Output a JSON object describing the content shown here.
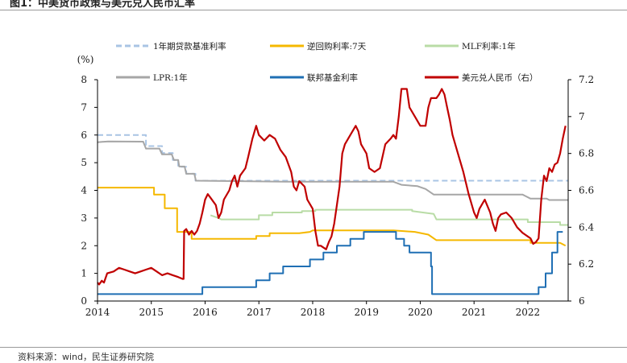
{
  "figure": {
    "title": "图1：中美货币政策与美元兑人民币汇率",
    "source": "资料来源：wind，民生证券研究院"
  },
  "colors": {
    "loan_rate": "#a9c4e4",
    "reverse_repo": "#f5b800",
    "mlf": "#b9dca6",
    "lpr": "#a6a6a6",
    "fed_funds": "#1f6fb4",
    "usdcny": "#c00000"
  },
  "chart_data": {
    "type": "line",
    "title": "",
    "xlabel": "",
    "ylabel_left": "(%)",
    "ylabel_right": "",
    "xlim": [
      2014,
      2022.75
    ],
    "ylim_left": [
      0,
      8
    ],
    "ylim_right": [
      6,
      7.2
    ],
    "x_ticks": [
      2014,
      2015,
      2016,
      2017,
      2018,
      2019,
      2020,
      2021,
      2022
    ],
    "y_left_ticks": [
      0,
      1,
      2,
      3,
      4,
      5,
      6,
      7,
      8
    ],
    "y_right_ticks": [
      "6",
      "6.2",
      "6.4",
      "6.6",
      "6.8",
      "7",
      "7.2"
    ],
    "grid": false,
    "legend_position": "top",
    "series": [
      {
        "name": "1年期贷款基准利率",
        "axis": "left",
        "style": "dashed",
        "color_key": "loan_rate",
        "points": [
          [
            2014.0,
            6.0
          ],
          [
            2014.9,
            6.0
          ],
          [
            2014.9,
            5.6
          ],
          [
            2015.2,
            5.6
          ],
          [
            2015.2,
            5.35
          ],
          [
            2015.4,
            5.35
          ],
          [
            2015.4,
            5.1
          ],
          [
            2015.5,
            5.1
          ],
          [
            2015.5,
            4.85
          ],
          [
            2015.65,
            4.85
          ],
          [
            2015.65,
            4.6
          ],
          [
            2015.82,
            4.6
          ],
          [
            2015.82,
            4.35
          ],
          [
            2022.75,
            4.35
          ]
        ]
      },
      {
        "name": "逆回购利率:7天",
        "axis": "left",
        "style": "solid",
        "color_key": "reverse_repo",
        "points": [
          [
            2014.0,
            4.1
          ],
          [
            2015.05,
            4.1
          ],
          [
            2015.05,
            3.85
          ],
          [
            2015.25,
            3.85
          ],
          [
            2015.25,
            3.35
          ],
          [
            2015.48,
            3.35
          ],
          [
            2015.48,
            2.5
          ],
          [
            2015.75,
            2.5
          ],
          [
            2015.75,
            2.25
          ],
          [
            2016.95,
            2.25
          ],
          [
            2016.95,
            2.35
          ],
          [
            2017.2,
            2.35
          ],
          [
            2017.2,
            2.45
          ],
          [
            2017.75,
            2.45
          ],
          [
            2017.95,
            2.5
          ],
          [
            2018.0,
            2.55
          ],
          [
            2019.5,
            2.55
          ],
          [
            2019.9,
            2.5
          ],
          [
            2020.15,
            2.4
          ],
          [
            2020.3,
            2.2
          ],
          [
            2022.05,
            2.2
          ],
          [
            2022.05,
            2.1
          ],
          [
            2022.6,
            2.1
          ],
          [
            2022.7,
            2.0
          ]
        ]
      },
      {
        "name": "MLF利率:1年",
        "axis": "left",
        "style": "solid",
        "color_key": "mlf",
        "points": [
          [
            2016.1,
            3.1
          ],
          [
            2016.25,
            3.0
          ],
          [
            2016.3,
            2.95
          ],
          [
            2017.0,
            2.95
          ],
          [
            2017.0,
            3.1
          ],
          [
            2017.25,
            3.1
          ],
          [
            2017.25,
            3.2
          ],
          [
            2017.8,
            3.2
          ],
          [
            2017.8,
            3.25
          ],
          [
            2018.05,
            3.25
          ],
          [
            2018.05,
            3.3
          ],
          [
            2019.85,
            3.3
          ],
          [
            2019.85,
            3.25
          ],
          [
            2020.25,
            3.15
          ],
          [
            2020.3,
            2.95
          ],
          [
            2022.0,
            2.95
          ],
          [
            2022.0,
            2.85
          ],
          [
            2022.6,
            2.85
          ],
          [
            2022.6,
            2.75
          ],
          [
            2022.75,
            2.75
          ]
        ]
      },
      {
        "name": "LPR:1年",
        "axis": "left",
        "style": "solid",
        "color_key": "lpr",
        "points": [
          [
            2014.0,
            5.74
          ],
          [
            2014.2,
            5.77
          ],
          [
            2014.85,
            5.76
          ],
          [
            2014.9,
            5.51
          ],
          [
            2015.15,
            5.51
          ],
          [
            2015.2,
            5.3
          ],
          [
            2015.38,
            5.3
          ],
          [
            2015.42,
            5.1
          ],
          [
            2015.5,
            5.1
          ],
          [
            2015.52,
            4.86
          ],
          [
            2015.62,
            4.86
          ],
          [
            2015.65,
            4.6
          ],
          [
            2015.8,
            4.6
          ],
          [
            2015.83,
            4.35
          ],
          [
            2017.5,
            4.31
          ],
          [
            2019.5,
            4.31
          ],
          [
            2019.65,
            4.2
          ],
          [
            2019.95,
            4.15
          ],
          [
            2020.1,
            4.05
          ],
          [
            2020.25,
            3.85
          ],
          [
            2021.9,
            3.85
          ],
          [
            2021.95,
            3.8
          ],
          [
            2022.05,
            3.7
          ],
          [
            2022.35,
            3.7
          ],
          [
            2022.4,
            3.65
          ],
          [
            2022.75,
            3.65
          ]
        ]
      },
      {
        "name": "联邦基金利率",
        "axis": "left",
        "style": "solid",
        "color_key": "fed_funds",
        "points": [
          [
            2014.0,
            0.25
          ],
          [
            2015.95,
            0.25
          ],
          [
            2015.95,
            0.5
          ],
          [
            2016.95,
            0.5
          ],
          [
            2016.95,
            0.75
          ],
          [
            2017.2,
            0.75
          ],
          [
            2017.2,
            1.0
          ],
          [
            2017.45,
            1.0
          ],
          [
            2017.45,
            1.25
          ],
          [
            2017.95,
            1.25
          ],
          [
            2017.95,
            1.5
          ],
          [
            2018.2,
            1.5
          ],
          [
            2018.2,
            1.75
          ],
          [
            2018.45,
            1.75
          ],
          [
            2018.45,
            2.0
          ],
          [
            2018.7,
            2.0
          ],
          [
            2018.7,
            2.25
          ],
          [
            2018.95,
            2.25
          ],
          [
            2018.95,
            2.5
          ],
          [
            2019.55,
            2.5
          ],
          [
            2019.55,
            2.25
          ],
          [
            2019.7,
            2.25
          ],
          [
            2019.7,
            2.0
          ],
          [
            2019.8,
            2.0
          ],
          [
            2019.8,
            1.75
          ],
          [
            2020.2,
            1.75
          ],
          [
            2020.2,
            1.25
          ],
          [
            2020.22,
            1.25
          ],
          [
            2020.22,
            0.25
          ],
          [
            2022.2,
            0.25
          ],
          [
            2022.2,
            0.5
          ],
          [
            2022.33,
            0.5
          ],
          [
            2022.33,
            1.0
          ],
          [
            2022.45,
            1.0
          ],
          [
            2022.45,
            1.75
          ],
          [
            2022.55,
            1.75
          ],
          [
            2022.55,
            2.5
          ],
          [
            2022.65,
            2.5
          ]
        ]
      },
      {
        "name": "美元兑人民币（右）",
        "axis": "right",
        "style": "solid",
        "color_key": "usdcny",
        "points": [
          [
            2014.0,
            6.1
          ],
          [
            2014.03,
            6.09
          ],
          [
            2014.08,
            6.11
          ],
          [
            2014.12,
            6.1
          ],
          [
            2014.18,
            6.15
          ],
          [
            2014.3,
            6.16
          ],
          [
            2014.4,
            6.18
          ],
          [
            2014.5,
            6.17
          ],
          [
            2014.6,
            6.16
          ],
          [
            2014.7,
            6.15
          ],
          [
            2014.8,
            6.16
          ],
          [
            2014.9,
            6.17
          ],
          [
            2015.0,
            6.18
          ],
          [
            2015.1,
            6.16
          ],
          [
            2015.2,
            6.14
          ],
          [
            2015.3,
            6.15
          ],
          [
            2015.4,
            6.14
          ],
          [
            2015.5,
            6.13
          ],
          [
            2015.58,
            6.12
          ],
          [
            2015.6,
            6.12
          ],
          [
            2015.61,
            6.38
          ],
          [
            2015.65,
            6.39
          ],
          [
            2015.7,
            6.36
          ],
          [
            2015.75,
            6.38
          ],
          [
            2015.8,
            6.36
          ],
          [
            2015.85,
            6.38
          ],
          [
            2015.9,
            6.42
          ],
          [
            2015.95,
            6.48
          ],
          [
            2016.0,
            6.55
          ],
          [
            2016.05,
            6.58
          ],
          [
            2016.1,
            6.56
          ],
          [
            2016.2,
            6.52
          ],
          [
            2016.25,
            6.45
          ],
          [
            2016.3,
            6.48
          ],
          [
            2016.35,
            6.55
          ],
          [
            2016.45,
            6.6
          ],
          [
            2016.5,
            6.65
          ],
          [
            2016.55,
            6.68
          ],
          [
            2016.6,
            6.62
          ],
          [
            2016.65,
            6.68
          ],
          [
            2016.75,
            6.72
          ],
          [
            2016.8,
            6.78
          ],
          [
            2016.88,
            6.88
          ],
          [
            2016.95,
            6.95
          ],
          [
            2017.0,
            6.9
          ],
          [
            2017.1,
            6.87
          ],
          [
            2017.2,
            6.9
          ],
          [
            2017.3,
            6.88
          ],
          [
            2017.4,
            6.82
          ],
          [
            2017.5,
            6.78
          ],
          [
            2017.6,
            6.7
          ],
          [
            2017.65,
            6.62
          ],
          [
            2017.7,
            6.6
          ],
          [
            2017.75,
            6.65
          ],
          [
            2017.85,
            6.62
          ],
          [
            2017.9,
            6.55
          ],
          [
            2018.0,
            6.5
          ],
          [
            2018.05,
            6.38
          ],
          [
            2018.1,
            6.3
          ],
          [
            2018.15,
            6.3
          ],
          [
            2018.25,
            6.28
          ],
          [
            2018.3,
            6.32
          ],
          [
            2018.35,
            6.35
          ],
          [
            2018.4,
            6.42
          ],
          [
            2018.5,
            6.62
          ],
          [
            2018.55,
            6.8
          ],
          [
            2018.6,
            6.85
          ],
          [
            2018.7,
            6.9
          ],
          [
            2018.8,
            6.95
          ],
          [
            2018.85,
            6.92
          ],
          [
            2018.9,
            6.85
          ],
          [
            2019.0,
            6.8
          ],
          [
            2019.05,
            6.72
          ],
          [
            2019.15,
            6.7
          ],
          [
            2019.25,
            6.72
          ],
          [
            2019.35,
            6.85
          ],
          [
            2019.45,
            6.88
          ],
          [
            2019.5,
            6.9
          ],
          [
            2019.55,
            6.88
          ],
          [
            2019.6,
            7.0
          ],
          [
            2019.65,
            7.15
          ],
          [
            2019.75,
            7.15
          ],
          [
            2019.8,
            7.05
          ],
          [
            2019.9,
            7.0
          ],
          [
            2020.0,
            6.95
          ],
          [
            2020.1,
            6.95
          ],
          [
            2020.15,
            7.05
          ],
          [
            2020.2,
            7.1
          ],
          [
            2020.3,
            7.1
          ],
          [
            2020.35,
            7.12
          ],
          [
            2020.4,
            7.15
          ],
          [
            2020.45,
            7.12
          ],
          [
            2020.5,
            7.05
          ],
          [
            2020.55,
            6.98
          ],
          [
            2020.6,
            6.9
          ],
          [
            2020.7,
            6.8
          ],
          [
            2020.8,
            6.7
          ],
          [
            2020.9,
            6.58
          ],
          [
            2021.0,
            6.48
          ],
          [
            2021.05,
            6.45
          ],
          [
            2021.1,
            6.5
          ],
          [
            2021.2,
            6.55
          ],
          [
            2021.3,
            6.48
          ],
          [
            2021.35,
            6.42
          ],
          [
            2021.4,
            6.38
          ],
          [
            2021.45,
            6.45
          ],
          [
            2021.5,
            6.47
          ],
          [
            2021.6,
            6.48
          ],
          [
            2021.7,
            6.45
          ],
          [
            2021.8,
            6.4
          ],
          [
            2021.9,
            6.37
          ],
          [
            2021.95,
            6.36
          ],
          [
            2022.0,
            6.35
          ],
          [
            2022.05,
            6.34
          ],
          [
            2022.1,
            6.31
          ],
          [
            2022.15,
            6.32
          ],
          [
            2022.2,
            6.34
          ],
          [
            2022.25,
            6.55
          ],
          [
            2022.3,
            6.68
          ],
          [
            2022.35,
            6.65
          ],
          [
            2022.4,
            6.72
          ],
          [
            2022.45,
            6.7
          ],
          [
            2022.5,
            6.74
          ],
          [
            2022.55,
            6.75
          ],
          [
            2022.6,
            6.8
          ],
          [
            2022.65,
            6.88
          ],
          [
            2022.7,
            6.95
          ]
        ]
      }
    ]
  }
}
